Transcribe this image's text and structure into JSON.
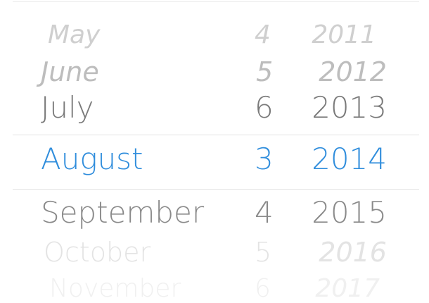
{
  "picker": {
    "columns": [
      "month",
      "day",
      "year"
    ],
    "rows": [
      {
        "month": "May",
        "day": "4",
        "year": "2011",
        "state": "faded"
      },
      {
        "month": "June",
        "day": "5",
        "year": "2012",
        "state": "faded"
      },
      {
        "month": "July",
        "day": "6",
        "year": "2013",
        "state": "near"
      },
      {
        "month": "August",
        "day": "3",
        "year": "2014",
        "state": "selected"
      },
      {
        "month": "September",
        "day": "4",
        "year": "2015",
        "state": "near"
      },
      {
        "month": "October",
        "day": "5",
        "year": "2016",
        "state": "faded"
      },
      {
        "month": "November",
        "day": "6",
        "year": "2017",
        "state": "faded"
      }
    ],
    "selected": {
      "month": "August",
      "day": "3",
      "year": "2014"
    }
  },
  "colors": {
    "selected_text": "#2f8ddc",
    "near_text": "#7a7a7a",
    "faded_text": "#cfcfcf",
    "divider": "#e2e2e2",
    "background": "#ffffff"
  }
}
